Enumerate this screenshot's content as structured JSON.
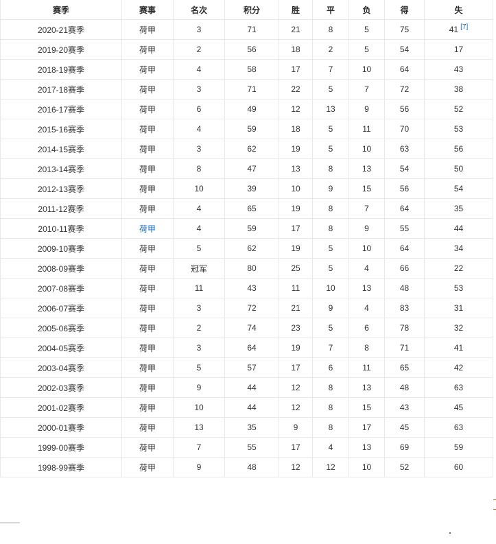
{
  "table": {
    "columns": [
      {
        "key": "season",
        "label": "赛季"
      },
      {
        "key": "competition",
        "label": "赛事"
      },
      {
        "key": "rank",
        "label": "名次"
      },
      {
        "key": "points",
        "label": "积分"
      },
      {
        "key": "wins",
        "label": "胜"
      },
      {
        "key": "draws",
        "label": "平"
      },
      {
        "key": "losses",
        "label": "负"
      },
      {
        "key": "goals_for",
        "label": "得"
      },
      {
        "key": "goals_against",
        "label": "失"
      }
    ],
    "rows": [
      {
        "season": "2020-21赛季",
        "competition": "荷甲",
        "rank": "3",
        "points": "71",
        "wins": "21",
        "draws": "8",
        "losses": "5",
        "goals_for": "75",
        "goals_against": "41",
        "ref": "[7]",
        "competition_is_link": false
      },
      {
        "season": "2019-20赛季",
        "competition": "荷甲",
        "rank": "2",
        "points": "56",
        "wins": "18",
        "draws": "2",
        "losses": "5",
        "goals_for": "54",
        "goals_against": "17",
        "ref": "",
        "competition_is_link": false
      },
      {
        "season": "2018-19赛季",
        "competition": "荷甲",
        "rank": "4",
        "points": "58",
        "wins": "17",
        "draws": "7",
        "losses": "10",
        "goals_for": "64",
        "goals_against": "43",
        "ref": "",
        "competition_is_link": false
      },
      {
        "season": "2017-18赛季",
        "competition": "荷甲",
        "rank": "3",
        "points": "71",
        "wins": "22",
        "draws": "5",
        "losses": "7",
        "goals_for": "72",
        "goals_against": "38",
        "ref": "",
        "competition_is_link": false
      },
      {
        "season": "2016-17赛季",
        "competition": "荷甲",
        "rank": "6",
        "points": "49",
        "wins": "12",
        "draws": "13",
        "losses": "9",
        "goals_for": "56",
        "goals_against": "52",
        "ref": "",
        "competition_is_link": false
      },
      {
        "season": "2015-16赛季",
        "competition": "荷甲",
        "rank": "4",
        "points": "59",
        "wins": "18",
        "draws": "5",
        "losses": "11",
        "goals_for": "70",
        "goals_against": "53",
        "ref": "",
        "competition_is_link": false
      },
      {
        "season": "2014-15赛季",
        "competition": "荷甲",
        "rank": "3",
        "points": "62",
        "wins": "19",
        "draws": "5",
        "losses": "10",
        "goals_for": "63",
        "goals_against": "56",
        "ref": "",
        "competition_is_link": false
      },
      {
        "season": "2013-14赛季",
        "competition": "荷甲",
        "rank": "8",
        "points": "47",
        "wins": "13",
        "draws": "8",
        "losses": "13",
        "goals_for": "54",
        "goals_against": "50",
        "ref": "",
        "competition_is_link": false
      },
      {
        "season": "2012-13赛季",
        "competition": "荷甲",
        "rank": "10",
        "points": "39",
        "wins": "10",
        "draws": "9",
        "losses": "15",
        "goals_for": "56",
        "goals_against": "54",
        "ref": "",
        "competition_is_link": false
      },
      {
        "season": "2011-12赛季",
        "competition": "荷甲",
        "rank": "4",
        "points": "65",
        "wins": "19",
        "draws": "8",
        "losses": "7",
        "goals_for": "64",
        "goals_against": "35",
        "ref": "",
        "competition_is_link": false
      },
      {
        "season": "2010-11赛季",
        "competition": "荷甲",
        "rank": "4",
        "points": "59",
        "wins": "17",
        "draws": "8",
        "losses": "9",
        "goals_for": "55",
        "goals_against": "44",
        "ref": "",
        "competition_is_link": true
      },
      {
        "season": "2009-10赛季",
        "competition": "荷甲",
        "rank": "5",
        "points": "62",
        "wins": "19",
        "draws": "5",
        "losses": "10",
        "goals_for": "64",
        "goals_against": "34",
        "ref": "",
        "competition_is_link": false
      },
      {
        "season": "2008-09赛季",
        "competition": "荷甲",
        "rank": "冠军",
        "points": "80",
        "wins": "25",
        "draws": "5",
        "losses": "4",
        "goals_for": "66",
        "goals_against": "22",
        "ref": "",
        "competition_is_link": false
      },
      {
        "season": "2007-08赛季",
        "competition": "荷甲",
        "rank": "11",
        "points": "43",
        "wins": "11",
        "draws": "10",
        "losses": "13",
        "goals_for": "48",
        "goals_against": "53",
        "ref": "",
        "competition_is_link": false
      },
      {
        "season": "2006-07赛季",
        "competition": "荷甲",
        "rank": "3",
        "points": "72",
        "wins": "21",
        "draws": "9",
        "losses": "4",
        "goals_for": "83",
        "goals_against": "31",
        "ref": "",
        "competition_is_link": false
      },
      {
        "season": "2005-06赛季",
        "competition": "荷甲",
        "rank": "2",
        "points": "74",
        "wins": "23",
        "draws": "5",
        "losses": "6",
        "goals_for": "78",
        "goals_against": "32",
        "ref": "",
        "competition_is_link": false
      },
      {
        "season": "2004-05赛季",
        "competition": "荷甲",
        "rank": "3",
        "points": "64",
        "wins": "19",
        "draws": "7",
        "losses": "8",
        "goals_for": "71",
        "goals_against": "41",
        "ref": "",
        "competition_is_link": false
      },
      {
        "season": "2003-04赛季",
        "competition": "荷甲",
        "rank": "5",
        "points": "57",
        "wins": "17",
        "draws": "6",
        "losses": "11",
        "goals_for": "65",
        "goals_against": "42",
        "ref": "",
        "competition_is_link": false
      },
      {
        "season": "2002-03赛季",
        "competition": "荷甲",
        "rank": "9",
        "points": "44",
        "wins": "12",
        "draws": "8",
        "losses": "13",
        "goals_for": "48",
        "goals_against": "63",
        "ref": "",
        "competition_is_link": false
      },
      {
        "season": "2001-02赛季",
        "competition": "荷甲",
        "rank": "10",
        "points": "44",
        "wins": "12",
        "draws": "8",
        "losses": "15",
        "goals_for": "43",
        "goals_against": "45",
        "ref": "",
        "competition_is_link": false
      },
      {
        "season": "2000-01赛季",
        "competition": "荷甲",
        "rank": "13",
        "points": "35",
        "wins": "9",
        "draws": "8",
        "losses": "17",
        "goals_for": "45",
        "goals_against": "63",
        "ref": "",
        "competition_is_link": false
      },
      {
        "season": "1999-00赛季",
        "competition": "荷甲",
        "rank": "7",
        "points": "55",
        "wins": "17",
        "draws": "4",
        "losses": "13",
        "goals_for": "69",
        "goals_against": "59",
        "ref": "",
        "competition_is_link": false
      },
      {
        "season": "1998-99赛季",
        "competition": "荷甲",
        "rank": "9",
        "points": "48",
        "wins": "12",
        "draws": "12",
        "losses": "10",
        "goals_for": "52",
        "goals_against": "60",
        "ref": "",
        "competition_is_link": false
      }
    ]
  },
  "colors": {
    "link_blue": "#136ec2",
    "text": "#333333",
    "border": "#e9e9e9",
    "partial_bracket_orange": "#b5772e"
  }
}
